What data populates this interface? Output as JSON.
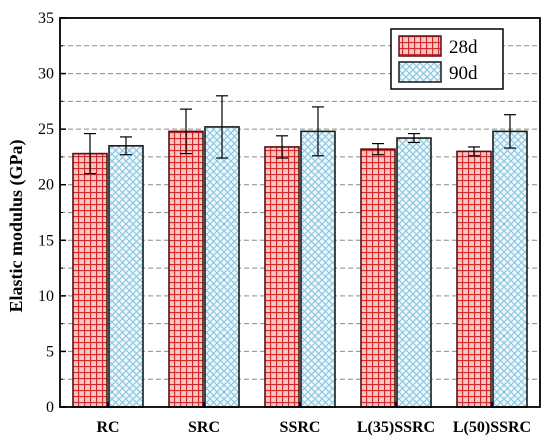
{
  "chart_data": {
    "type": "bar",
    "title": "",
    "xlabel": "",
    "ylabel": "Elastic modulus (GPa)",
    "ylim": [
      0,
      35
    ],
    "yticks": [
      0,
      5,
      10,
      15,
      20,
      25,
      30,
      35
    ],
    "grid": "horizontal-dashed",
    "legend_position": "top-right",
    "categories": [
      "RC",
      "SRC",
      "SSRC",
      "L(35)SSRC",
      "L(50)SSRC"
    ],
    "series": [
      {
        "name": "28d",
        "values": [
          22.8,
          24.8,
          23.4,
          23.2,
          23.0
        ],
        "errors": [
          1.8,
          2.0,
          1.0,
          0.5,
          0.4
        ],
        "color": "#d93030",
        "pattern": "grid"
      },
      {
        "name": "90d",
        "values": [
          23.5,
          25.2,
          24.8,
          24.2,
          24.8
        ],
        "errors": [
          0.8,
          2.8,
          2.2,
          0.4,
          1.5
        ],
        "color": "#8ec8e0",
        "pattern": "crosshatch"
      }
    ]
  }
}
